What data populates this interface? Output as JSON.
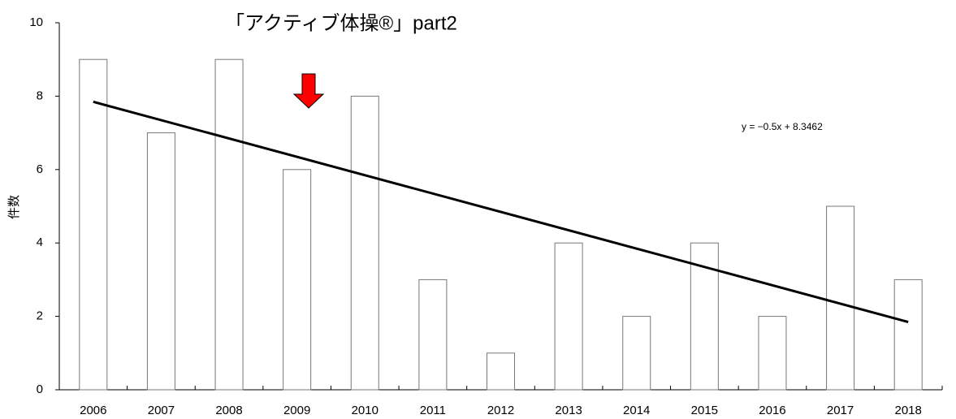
{
  "chart_data": {
    "type": "bar",
    "title": "「アクティブ体操®」part2",
    "y_label": "件数",
    "categories": [
      "2006",
      "2007",
      "2008",
      "2009",
      "2010",
      "2011",
      "2012",
      "2013",
      "2014",
      "2015",
      "2016",
      "2017",
      "2018"
    ],
    "values": [
      9,
      7,
      9,
      6,
      8,
      3,
      1,
      4,
      2,
      4,
      2,
      5,
      3
    ],
    "color": "#ffffff",
    "ylim": [
      0,
      10
    ],
    "yticks": [
      0,
      2,
      4,
      6,
      8,
      10
    ],
    "grid": false,
    "trendline": {
      "slope": -0.5,
      "intercept": 8.3462,
      "label": "y = −0.5x + 8.3462"
    }
  }
}
